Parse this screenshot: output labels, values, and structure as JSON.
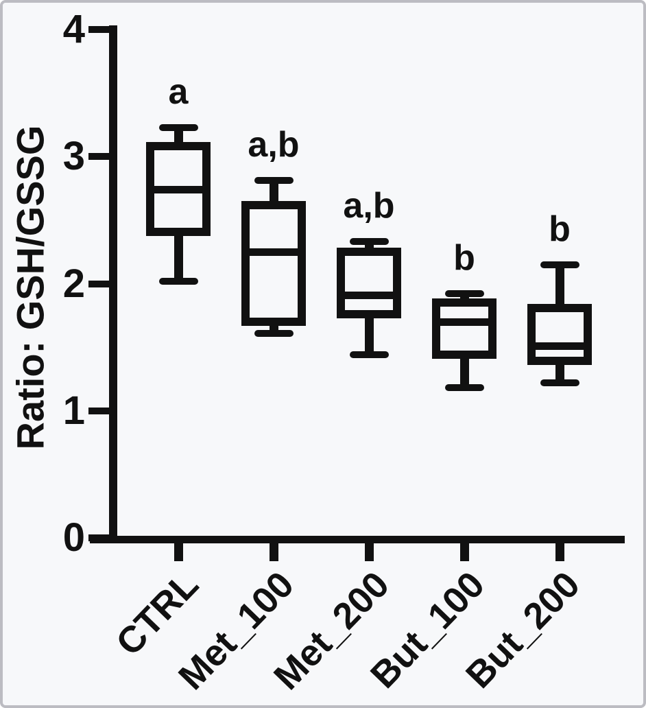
{
  "figure": {
    "background": "#f7f8fa",
    "stroke_color": "#111111",
    "border_color": "#bcbcc2"
  },
  "chart_data": {
    "type": "boxplot",
    "title": "",
    "xlabel": "",
    "ylabel": "Ratio: GSH/GSSG",
    "ylim": [
      0,
      4
    ],
    "yticks": [
      "0",
      "1",
      "2",
      "3",
      "4"
    ],
    "grid": false,
    "legend": "none",
    "categories": [
      "CTRL",
      "Met_100",
      "Met_200",
      "But_100",
      "But_200"
    ],
    "series": [
      {
        "category": "CTRL",
        "whisker_low": 2.02,
        "q1": 2.41,
        "median": 2.74,
        "q3": 3.08,
        "whisker_high": 3.23,
        "sig_label": "a"
      },
      {
        "category": "Met_100",
        "whisker_low": 1.61,
        "q1": 1.7,
        "median": 2.25,
        "q3": 2.62,
        "whisker_high": 2.81,
        "sig_label": "a,b"
      },
      {
        "category": "Met_200",
        "whisker_low": 1.44,
        "q1": 1.76,
        "median": 1.91,
        "q3": 2.25,
        "whisker_high": 2.33,
        "sig_label": "a,b"
      },
      {
        "category": "But_100",
        "whisker_low": 1.18,
        "q1": 1.44,
        "median": 1.7,
        "q3": 1.85,
        "whisker_high": 1.92,
        "sig_label": "b"
      },
      {
        "category": "But_200",
        "whisker_low": 1.22,
        "q1": 1.39,
        "median": 1.51,
        "q3": 1.81,
        "whisker_high": 2.15,
        "sig_label": "b"
      }
    ]
  }
}
